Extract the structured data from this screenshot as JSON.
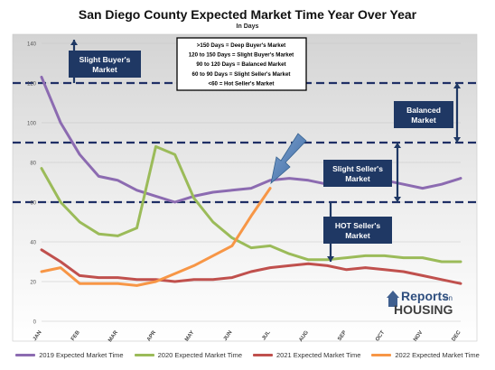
{
  "title": "San Diego County Expected Market Time Year Over Year",
  "subtitle": "In Days",
  "chart_data": {
    "type": "line",
    "categories": [
      "JAN",
      "FEB",
      "MAR",
      "APR",
      "MAY",
      "JUN",
      "JUL",
      "AUG",
      "SEP",
      "OCT",
      "NOV",
      "DEC"
    ],
    "ylim": [
      0,
      140
    ],
    "yticks": [
      0,
      20,
      40,
      60,
      80,
      100,
      120,
      140
    ],
    "grid": true,
    "legend_position": "bottom",
    "series": [
      {
        "name": "2019 Expected Market Time",
        "color": "#8c6bb1",
        "points": [
          [
            0,
            123
          ],
          [
            0.5,
            100
          ],
          [
            1,
            84
          ],
          [
            1.5,
            73
          ],
          [
            2,
            71
          ],
          [
            2.5,
            66
          ],
          [
            3,
            63
          ],
          [
            3.5,
            60
          ],
          [
            4,
            63
          ],
          [
            4.5,
            65
          ],
          [
            5,
            66
          ],
          [
            5.5,
            67
          ],
          [
            6,
            71
          ],
          [
            6.5,
            72
          ],
          [
            7,
            71
          ],
          [
            7.5,
            69
          ],
          [
            8,
            72
          ],
          [
            8.5,
            70
          ],
          [
            9,
            71
          ],
          [
            9.5,
            69
          ],
          [
            10,
            67
          ],
          [
            10.5,
            69
          ],
          [
            11,
            72
          ]
        ]
      },
      {
        "name": "2020 Expected Market Time",
        "color": "#9bbb59",
        "points": [
          [
            0,
            77
          ],
          [
            0.5,
            60
          ],
          [
            1,
            50
          ],
          [
            1.5,
            44
          ],
          [
            2,
            43
          ],
          [
            2.5,
            47
          ],
          [
            3,
            88
          ],
          [
            3.5,
            84
          ],
          [
            4,
            62
          ],
          [
            4.5,
            50
          ],
          [
            5,
            42
          ],
          [
            5.5,
            37
          ],
          [
            6,
            38
          ],
          [
            6.5,
            34
          ],
          [
            7,
            31
          ],
          [
            7.5,
            31
          ],
          [
            8,
            32
          ],
          [
            8.5,
            33
          ],
          [
            9,
            33
          ],
          [
            9.5,
            32
          ],
          [
            10,
            32
          ],
          [
            10.5,
            30
          ],
          [
            11,
            30
          ]
        ]
      },
      {
        "name": "2021 Expected Market Time",
        "color": "#c0504d",
        "points": [
          [
            0,
            36
          ],
          [
            0.5,
            30
          ],
          [
            1,
            23
          ],
          [
            1.5,
            22
          ],
          [
            2,
            22
          ],
          [
            2.5,
            21
          ],
          [
            3,
            21
          ],
          [
            3.5,
            20
          ],
          [
            4,
            21
          ],
          [
            4.5,
            21
          ],
          [
            5,
            22
          ],
          [
            5.5,
            25
          ],
          [
            6,
            27
          ],
          [
            6.5,
            28
          ],
          [
            7,
            29
          ],
          [
            7.5,
            28
          ],
          [
            8,
            26
          ],
          [
            8.5,
            27
          ],
          [
            9,
            26
          ],
          [
            9.5,
            25
          ],
          [
            10,
            23
          ],
          [
            10.5,
            21
          ],
          [
            11,
            19
          ]
        ]
      },
      {
        "name": "2022 Expected Market Time",
        "color": "#f79646",
        "points": [
          [
            0,
            25
          ],
          [
            0.5,
            27
          ],
          [
            1,
            19
          ],
          [
            1.5,
            19
          ],
          [
            2,
            19
          ],
          [
            2.5,
            18
          ],
          [
            3,
            20
          ],
          [
            3.5,
            24
          ],
          [
            4,
            28
          ],
          [
            4.5,
            33
          ],
          [
            5,
            38
          ],
          [
            5.5,
            53
          ],
          [
            6,
            67
          ]
        ]
      }
    ],
    "threshold_lines": [
      {
        "label": "Deep Buyer's Market",
        "y": 150
      },
      {
        "label": "Slight Buyer's Market",
        "y": 120
      },
      {
        "label": "Balanced Market",
        "y": 90
      },
      {
        "label": "Slight Seller's Market",
        "y": 60
      }
    ],
    "annotations": {
      "key_box": [
        ">150 Days  = Deep Buyer's Market",
        "120 to 150 Days  = Slight Buyer's Market",
        "90 to 120 Days  = Balanced Market",
        "60 to 90 Days  = Slight Seller's Market",
        "<60  = Hot Seller's Market"
      ],
      "slight_buyers": [
        "Slight Buyer's",
        "Market"
      ],
      "balanced": [
        "Balanced",
        "Market"
      ],
      "slight_sellers": [
        "Slight Seller's",
        "Market"
      ],
      "hot_sellers": [
        "HOT Seller's",
        "Market"
      ],
      "box_color": "#1f3864"
    }
  },
  "logo": {
    "line1": "Reports",
    "line1_small": "on",
    "line2": "HOUSING"
  }
}
